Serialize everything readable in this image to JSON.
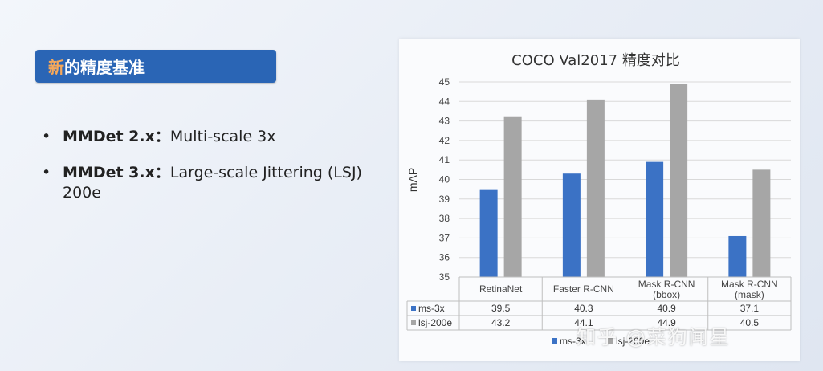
{
  "slide": {
    "title_accent": "新",
    "title_rest": "的精度基准",
    "bullets": [
      {
        "bold": "MMDet 2.x：",
        "text": "Multi-scale 3x"
      },
      {
        "bold": "MMDet 3.x：",
        "text": "Large-scale Jittering (LSJ) 200e"
      }
    ]
  },
  "watermark": "知乎 @菜狗闻星",
  "colors": {
    "ms3x": "#3b72c5",
    "lsj200e": "#a6a6a6",
    "title_bg": "#2a65b5",
    "title_accent": "#f6a85a"
  },
  "chart_data": {
    "type": "bar",
    "title": "COCO Val2017 精度对比",
    "ylabel": "mAP",
    "ylim": [
      35,
      45
    ],
    "yticks": [
      "35",
      "36",
      "37",
      "38",
      "39",
      "40",
      "41",
      "42",
      "43",
      "44",
      "45"
    ],
    "grid": true,
    "legend": "bottom",
    "categories": [
      [
        "RetinaNet"
      ],
      [
        "Faster R-CNN"
      ],
      [
        "Mask R-CNN",
        "(bbox)"
      ],
      [
        "Mask R-CNN",
        "(mask)"
      ]
    ],
    "series": [
      {
        "name": "ms-3x",
        "values": [
          39.5,
          40.3,
          40.9,
          37.1
        ],
        "labels": [
          "39.5",
          "40.3",
          "40.9",
          "37.1"
        ]
      },
      {
        "name": "lsj-200e",
        "values": [
          43.2,
          44.1,
          44.9,
          40.5
        ],
        "labels": [
          "43.2",
          "44.1",
          "44.9",
          "40.5"
        ]
      }
    ]
  }
}
